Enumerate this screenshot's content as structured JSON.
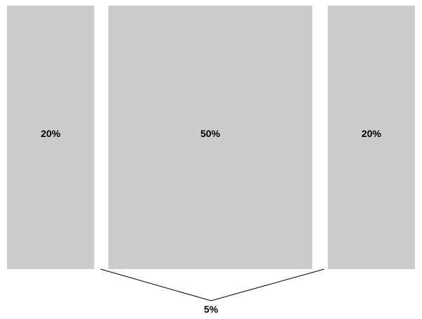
{
  "columns": [
    {
      "label": "20%",
      "share_percent": 20
    },
    {
      "label": "50%",
      "share_percent": 50
    },
    {
      "label": "20%",
      "share_percent": 20
    }
  ],
  "gutter": {
    "label": "5%",
    "share_percent": 5
  },
  "colors": {
    "column_fill": "#cccccc",
    "line": "#000000",
    "text": "#000000"
  }
}
